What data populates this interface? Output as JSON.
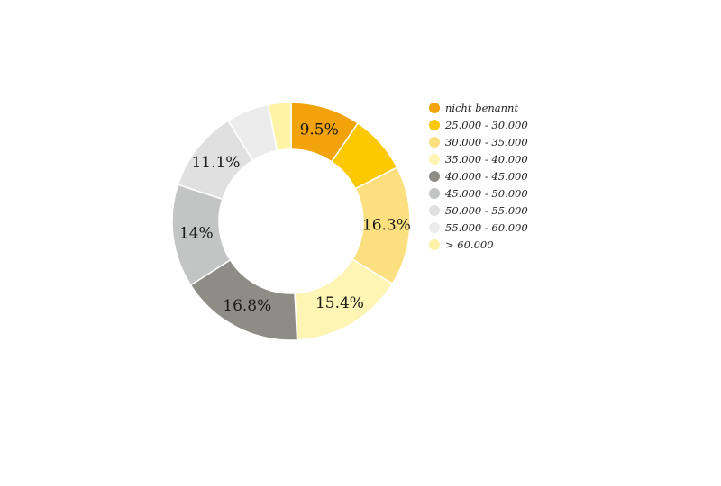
{
  "chart_data": {
    "type": "pie",
    "variant": "donut",
    "legend_position": "right",
    "slices": [
      {
        "name": "nicht benannt",
        "value": 9.5,
        "label": "9.5%",
        "color": "#f2a20a"
      },
      {
        "name": "25.000 - 30.000",
        "value": 8.0,
        "label": "",
        "color": "#fcc800"
      },
      {
        "name": "30.000 - 35.000",
        "value": 16.3,
        "label": "16.3%",
        "color": "#fce07f"
      },
      {
        "name": "35.000 - 40.000",
        "value": 15.4,
        "label": "15.4%",
        "color": "#fef4b3"
      },
      {
        "name": "40.000 - 45.000",
        "value": 16.8,
        "label": "16.8%",
        "color": "#8e8c86"
      },
      {
        "name": "45.000 - 50.000",
        "value": 14.0,
        "label": "14%",
        "color": "#c3c4c4"
      },
      {
        "name": "50.000 - 55.000",
        "value": 11.1,
        "label": "11.1%",
        "color": "#e0e0e0"
      },
      {
        "name": "55.000 - 60.000",
        "value": 5.8,
        "label": "",
        "color": "#ececec"
      },
      {
        "name": "> 60.000",
        "value": 3.1,
        "label": "",
        "color": "#fff3a8"
      }
    ]
  }
}
